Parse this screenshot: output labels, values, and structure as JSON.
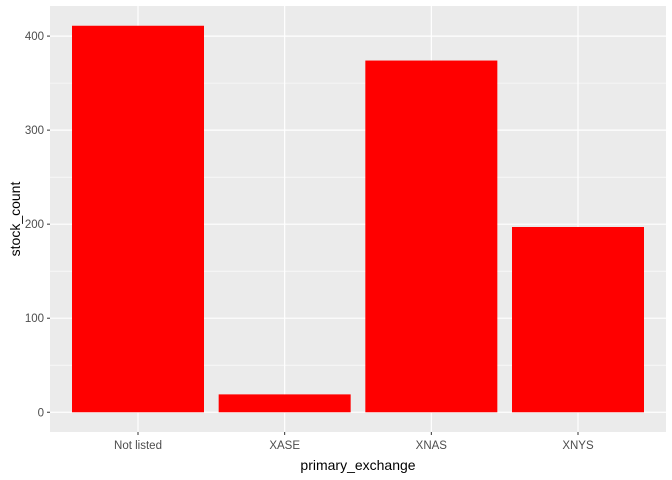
{
  "chart_data": {
    "type": "bar",
    "categories": [
      "Not listed",
      "XASE",
      "XNAS",
      "XNYS"
    ],
    "values": [
      411,
      19,
      374,
      197
    ],
    "xlabel": "primary_exchange",
    "ylabel": "stock_count",
    "ylim": [
      -21,
      432
    ],
    "yticks": [
      0,
      100,
      200,
      300,
      400
    ],
    "yminor": [
      50,
      150,
      250,
      350
    ],
    "bar_color": "#ff0000",
    "panel_color": "#ebebeb",
    "grid_color": "#ffffff",
    "grid": true,
    "legend": "none"
  }
}
